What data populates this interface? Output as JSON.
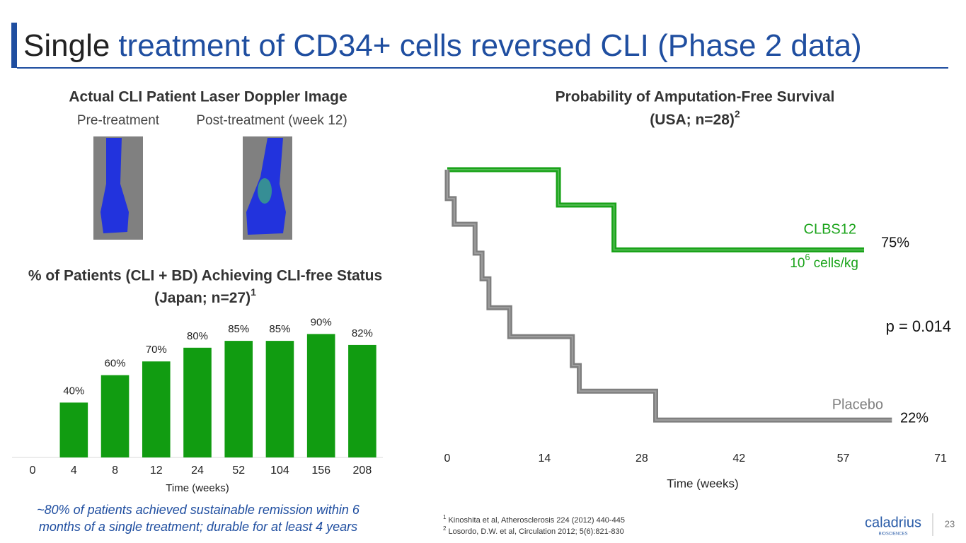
{
  "header": {
    "title_lead": "Single",
    "title_rest": "treatment of CD34+ cells reversed CLI (Phase 2 data)"
  },
  "images": {
    "title": "Actual CLI Patient Laser Doppler Image",
    "pre_label": "Pre-treatment",
    "post_label": "Post-treatment (week 12)"
  },
  "chart_data": [
    {
      "type": "bar",
      "title": "% of Patients (CLI + BD) Achieving CLI-free Status",
      "subtitle": "(Japan; n=27)",
      "subtitle_note": "1",
      "x_label": "Time (weeks)",
      "categories": [
        "0",
        "4",
        "8",
        "12",
        "24",
        "52",
        "104",
        "156",
        "208"
      ],
      "values": [
        null,
        40,
        60,
        70,
        80,
        85,
        85,
        90,
        82
      ],
      "value_labels": [
        null,
        "40%",
        "60%",
        "70%",
        "80%",
        "85%",
        "85%",
        "90%",
        "82%"
      ],
      "color": "#119c11",
      "ylim": [
        0,
        100
      ]
    },
    {
      "type": "line",
      "step": "post",
      "title": "Probability of Amputation-Free Survival",
      "subtitle": "(USA; n=28)",
      "subtitle_note": "2",
      "x_label": "Time (weeks)",
      "xlim": [
        0,
        71
      ],
      "xticks": [
        0,
        14,
        28,
        42,
        57,
        71
      ],
      "ylim": [
        0,
        100
      ],
      "series": [
        {
          "name": "CLBS12",
          "color": "#19a319",
          "x": [
            0,
            16,
            24,
            60
          ],
          "values": [
            100,
            89,
            75,
            75
          ]
        },
        {
          "name": "Placebo",
          "color": "#7f7f7f",
          "x": [
            0,
            0,
            1,
            4,
            5,
            6,
            9,
            18,
            19,
            30,
            64
          ],
          "values": [
            100,
            91,
            83,
            74,
            66,
            57,
            48,
            39,
            31,
            22,
            22
          ]
        }
      ],
      "annotations": {
        "clbs_end": "75%",
        "placebo_end": "22%",
        "dose_base": "10",
        "dose_exp": "6",
        "dose_unit": "cells/kg",
        "p_value": "p = 0.014"
      }
    }
  ],
  "caption": {
    "line1": "~80% of patients achieved sustainable remission within 6",
    "line2": "months of a single treatment; durable for at least 4 years"
  },
  "footnotes": [
    {
      "mark": "1",
      "text": "Kinoshita et al, Atherosclerosis 224 (2012) 440-445"
    },
    {
      "mark": "2",
      "text": "Losordo, D.W. et al, Circulation 2012; 5(6):821-830"
    }
  ],
  "footer": {
    "logo": "caladrius",
    "logo_sub": "BIOSCIENCES",
    "page": "23"
  }
}
